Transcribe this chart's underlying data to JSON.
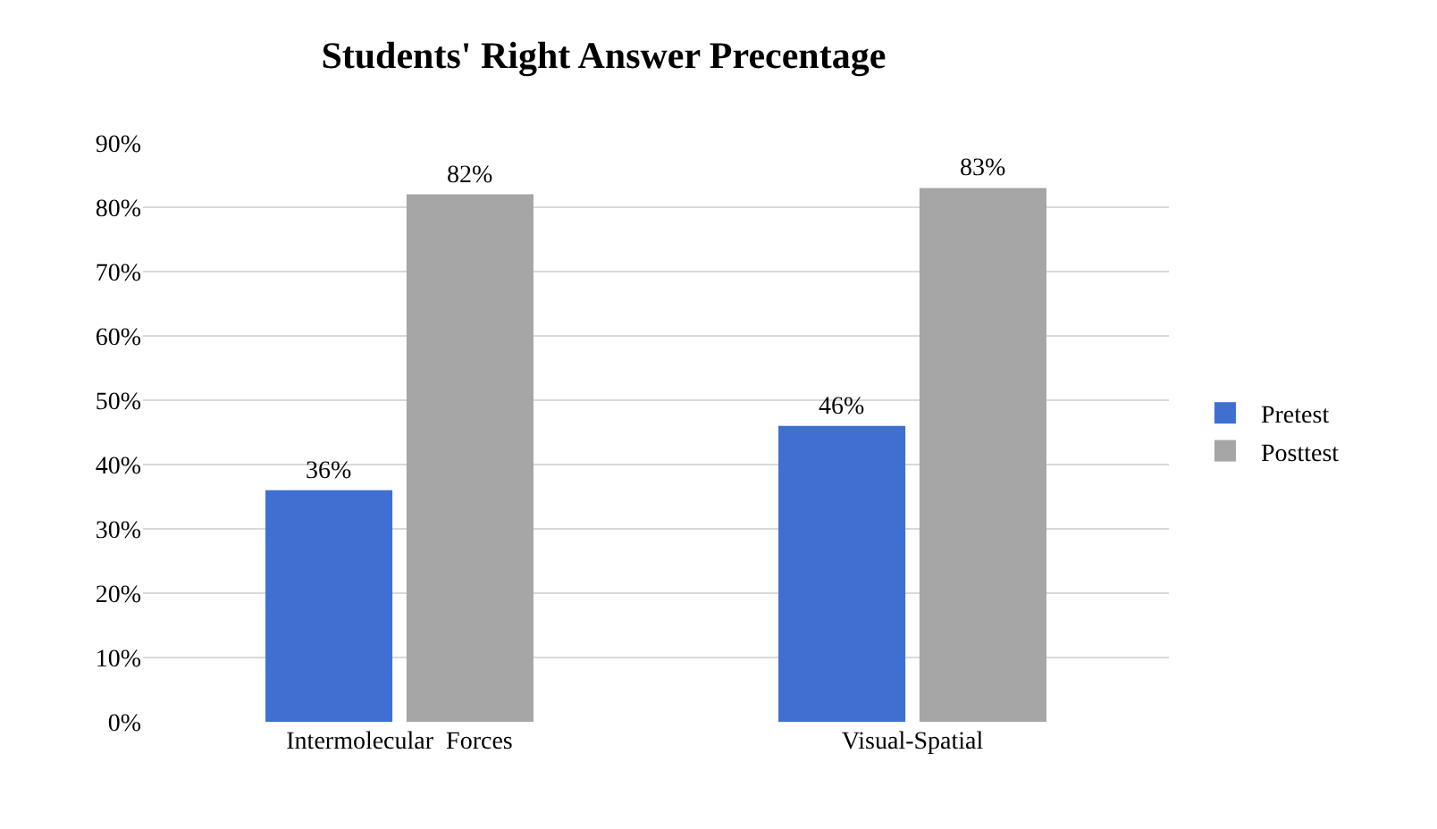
{
  "chart_data": {
    "type": "bar",
    "title": "Students' Right Answer Precentage",
    "categories": [
      "Intermolecular  Forces",
      "Visual-Spatial"
    ],
    "series": [
      {
        "name": "Pretest",
        "color": "#3f6fd1",
        "values": [
          36,
          46
        ]
      },
      {
        "name": "Posttest",
        "color": "#a6a6a6",
        "values": [
          82,
          83
        ]
      }
    ],
    "value_labels": [
      [
        "36%",
        "46%"
      ],
      [
        "82%",
        "83%"
      ]
    ],
    "ylim": [
      0,
      90
    ],
    "yticks": [
      {
        "value": 0,
        "label": "0%"
      },
      {
        "value": 10,
        "label": "10%"
      },
      {
        "value": 20,
        "label": "20%"
      },
      {
        "value": 30,
        "label": "30%"
      },
      {
        "value": 40,
        "label": "40%"
      },
      {
        "value": 50,
        "label": "50%"
      },
      {
        "value": 60,
        "label": "60%"
      },
      {
        "value": 70,
        "label": "70%"
      },
      {
        "value": 80,
        "label": "80%"
      },
      {
        "value": 90,
        "label": "90%"
      }
    ],
    "grid": "y",
    "legend": "right"
  }
}
